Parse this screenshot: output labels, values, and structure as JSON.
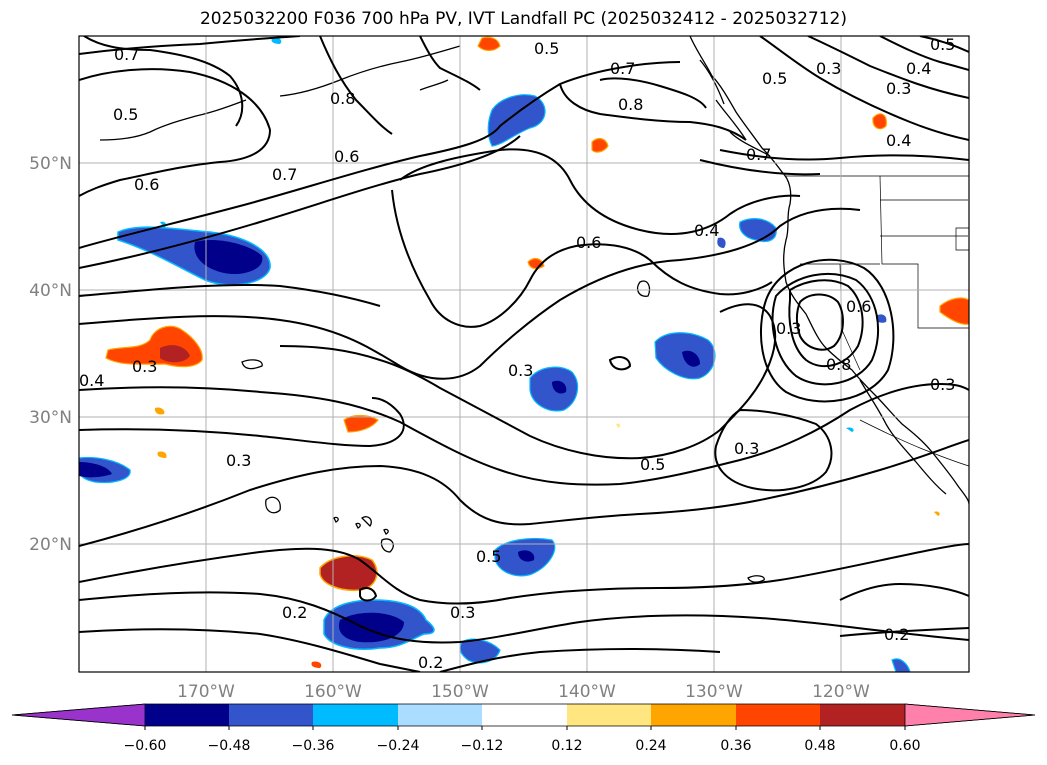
{
  "title": "2025032200 F036 700 hPa PV, IVT Landfall PC (2025032412 - 2025032712)",
  "lat_labels": [
    "50°N",
    "40°N",
    "30°N",
    "20°N"
  ],
  "lon_labels": [
    "170°W",
    "160°W",
    "150°W",
    "140°W",
    "130°W",
    "120°W"
  ],
  "contour_labels": [
    "0.7",
    "0.5",
    "0.8",
    "0.5",
    "0.6",
    "0.7",
    "0.6",
    "0.7",
    "0.8",
    "0.5",
    "0.3",
    "0.4",
    "0.3",
    "0.4",
    "0.5",
    "0.6",
    "0.4",
    "0.3",
    "0.4",
    "0.3",
    "0.5",
    "0.3",
    "0.3",
    "0.5",
    "0.3",
    "0.2",
    "0.3",
    "0.2",
    "0.2",
    "0.7",
    "0.6",
    "0.3",
    "0.8"
  ],
  "colorbar": {
    "ticks": [
      "−0.60",
      "−0.48",
      "−0.36",
      "−0.24",
      "−0.12",
      "0.12",
      "0.24",
      "0.36",
      "0.48",
      "0.60"
    ],
    "colors": [
      "#9933cc",
      "#00008b",
      "#3355cc",
      "#00bbff",
      "#aaddff",
      "#ffffff",
      "#ffe680",
      "#ffa500",
      "#ff4500",
      "#b22222",
      "#ff80aa"
    ]
  }
}
